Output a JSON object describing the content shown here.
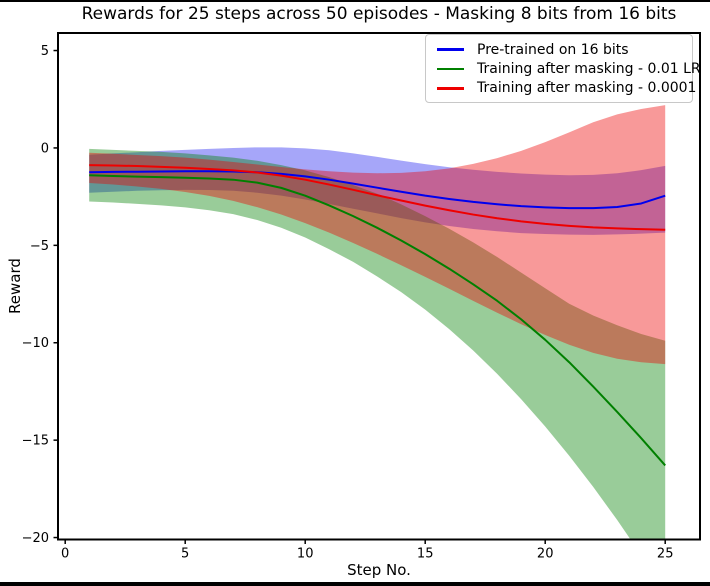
{
  "chart_data": {
    "type": "line",
    "title": "Rewards for 25 steps across 50 episodes - Masking 8 bits from 16 bits",
    "xlabel": "Step No.",
    "ylabel": "Reward",
    "grid": false,
    "legend_position": "upper right",
    "xlim": [
      -0.3,
      26.45
    ],
    "ylim": [
      -20.1,
      5.9
    ],
    "x_ticks": [
      0,
      5,
      10,
      15,
      20,
      25
    ],
    "x_tick_labels": [
      "0",
      "5",
      "10",
      "15",
      "20",
      "25"
    ],
    "y_ticks": [
      5,
      0,
      -5,
      -10,
      -15,
      -20
    ],
    "y_tick_labels": [
      "5",
      "0",
      "−5",
      "−10",
      "−15",
      "−20"
    ],
    "x": [
      1,
      2,
      3,
      4,
      5,
      6,
      7,
      8,
      9,
      10,
      11,
      12,
      13,
      14,
      15,
      16,
      17,
      18,
      19,
      20,
      21,
      22,
      23,
      24,
      25
    ],
    "series": [
      {
        "name": "Pre-trained on 16 bits",
        "color": "#0000ee",
        "band_opacity": 0.35,
        "mean": [
          -1.25,
          -1.23,
          -1.22,
          -1.21,
          -1.2,
          -1.2,
          -1.21,
          -1.25,
          -1.33,
          -1.46,
          -1.63,
          -1.83,
          -2.04,
          -2.25,
          -2.45,
          -2.62,
          -2.77,
          -2.89,
          -2.99,
          -3.05,
          -3.09,
          -3.09,
          -3.03,
          -2.85,
          -2.45
        ],
        "upper": [
          -0.35,
          -0.28,
          -0.22,
          -0.15,
          -0.1,
          -0.05,
          0.0,
          0.03,
          0.03,
          -0.02,
          -0.12,
          -0.28,
          -0.46,
          -0.65,
          -0.83,
          -0.99,
          -1.12,
          -1.23,
          -1.31,
          -1.37,
          -1.4,
          -1.38,
          -1.3,
          -1.14,
          -0.92
        ],
        "lower": [
          -2.3,
          -2.25,
          -2.2,
          -2.17,
          -2.15,
          -2.16,
          -2.2,
          -2.3,
          -2.45,
          -2.65,
          -2.88,
          -3.12,
          -3.36,
          -3.6,
          -3.82,
          -4.01,
          -4.16,
          -4.28,
          -4.37,
          -4.42,
          -4.45,
          -4.46,
          -4.44,
          -4.4,
          -4.35
        ]
      },
      {
        "name": "Training after masking - 0.01 LR",
        "color": "#008000",
        "band_opacity": 0.4,
        "mean": [
          -1.4,
          -1.44,
          -1.47,
          -1.5,
          -1.53,
          -1.57,
          -1.63,
          -1.78,
          -2.05,
          -2.45,
          -2.95,
          -3.5,
          -4.1,
          -4.75,
          -5.45,
          -6.2,
          -7.0,
          -7.85,
          -8.8,
          -9.85,
          -11.0,
          -12.25,
          -13.55,
          -14.9,
          -16.3
        ],
        "upper": [
          -0.05,
          -0.1,
          -0.15,
          -0.2,
          -0.28,
          -0.38,
          -0.5,
          -0.66,
          -0.88,
          -1.15,
          -1.5,
          -1.9,
          -2.35,
          -2.9,
          -3.5,
          -4.15,
          -4.85,
          -5.6,
          -6.4,
          -7.2,
          -8.0,
          -8.6,
          -9.1,
          -9.55,
          -9.9
        ],
        "lower": [
          -2.75,
          -2.8,
          -2.87,
          -2.95,
          -3.05,
          -3.2,
          -3.4,
          -3.7,
          -4.1,
          -4.6,
          -5.2,
          -5.85,
          -6.6,
          -7.4,
          -8.3,
          -9.3,
          -10.4,
          -11.6,
          -12.9,
          -14.3,
          -15.8,
          -17.4,
          -19.1,
          -20.9,
          -22.7
        ]
      },
      {
        "name": "Training after masking - 0.0001",
        "color": "#ee0000",
        "band_opacity": 0.4,
        "mean": [
          -0.88,
          -0.9,
          -0.93,
          -0.97,
          -1.02,
          -1.08,
          -1.15,
          -1.26,
          -1.42,
          -1.63,
          -1.88,
          -2.15,
          -2.43,
          -2.7,
          -2.96,
          -3.2,
          -3.42,
          -3.61,
          -3.77,
          -3.9,
          -4.0,
          -4.08,
          -4.13,
          -4.17,
          -4.2
        ],
        "upper": [
          -0.25,
          -0.3,
          -0.36,
          -0.42,
          -0.5,
          -0.6,
          -0.72,
          -0.85,
          -0.98,
          -1.1,
          -1.2,
          -1.27,
          -1.3,
          -1.28,
          -1.2,
          -1.05,
          -0.82,
          -0.52,
          -0.15,
          0.3,
          0.8,
          1.32,
          1.72,
          2.0,
          2.2
        ],
        "lower": [
          -1.8,
          -1.88,
          -1.98,
          -2.1,
          -2.26,
          -2.46,
          -2.72,
          -3.04,
          -3.42,
          -3.86,
          -4.35,
          -4.88,
          -5.44,
          -6.02,
          -6.62,
          -7.23,
          -7.85,
          -8.46,
          -9.05,
          -9.6,
          -10.1,
          -10.52,
          -10.82,
          -11.0,
          -11.1
        ]
      }
    ]
  }
}
